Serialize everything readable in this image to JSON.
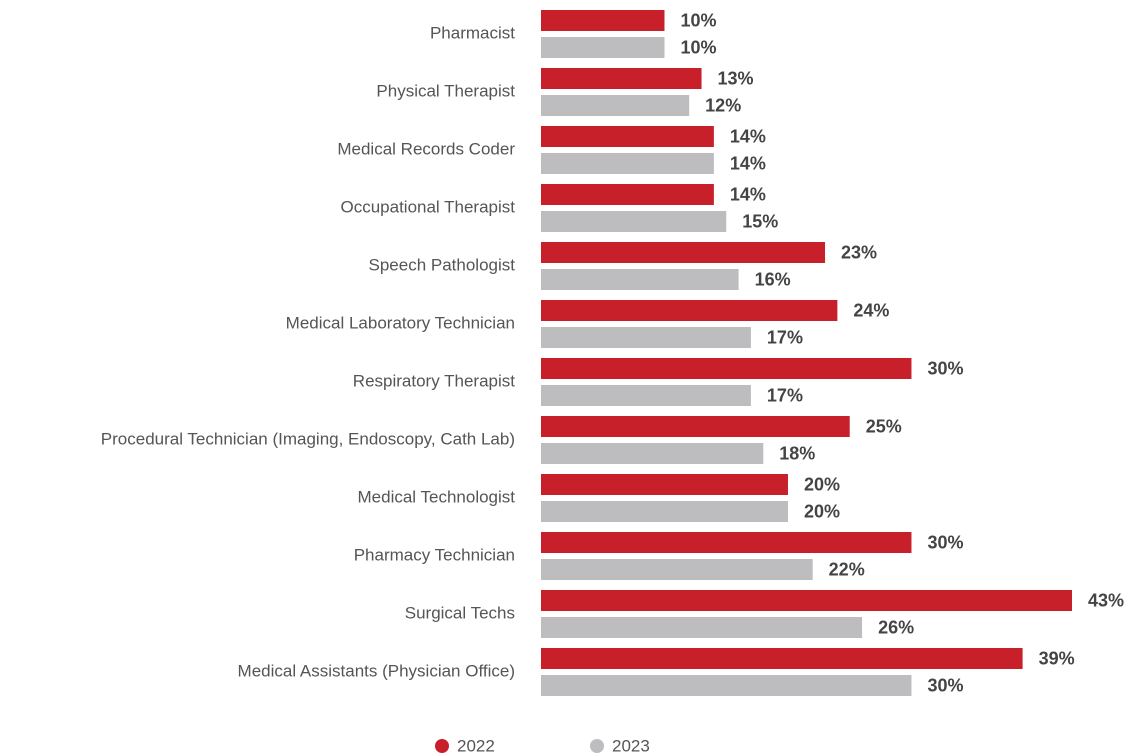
{
  "chart_data": {
    "type": "bar",
    "orientation": "horizontal",
    "categories": [
      "Pharmacist",
      "Physical Therapist",
      "Medical Records Coder",
      "Occupational Therapist",
      "Speech Pathologist",
      "Medical Laboratory Technician",
      "Respiratory Therapist",
      "Procedural Technician (Imaging, Endoscopy, Cath Lab)",
      "Medical Technologist",
      "Pharmacy Technician",
      "Surgical Techs",
      "Medical Assistants (Physician Office)"
    ],
    "series": [
      {
        "name": "2022",
        "color": "#c8202a",
        "values": [
          10,
          13,
          14,
          14,
          23,
          24,
          30,
          25,
          20,
          30,
          43,
          39
        ],
        "value_labels": [
          "10%",
          "13%",
          "14%",
          "14%",
          "23%",
          "24%",
          "30%",
          "25%",
          "20%",
          "30%",
          "43%",
          "39%"
        ]
      },
      {
        "name": "2023",
        "color": "#bdbdc0",
        "values": [
          10,
          12,
          14,
          15,
          16,
          17,
          17,
          18,
          20,
          22,
          26,
          30
        ],
        "value_labels": [
          "10%",
          "12%",
          "14%",
          "15%",
          "16%",
          "17%",
          "17%",
          "18%",
          "20%",
          "22%",
          "26%",
          "30%"
        ]
      }
    ],
    "legend": "bottom"
  }
}
